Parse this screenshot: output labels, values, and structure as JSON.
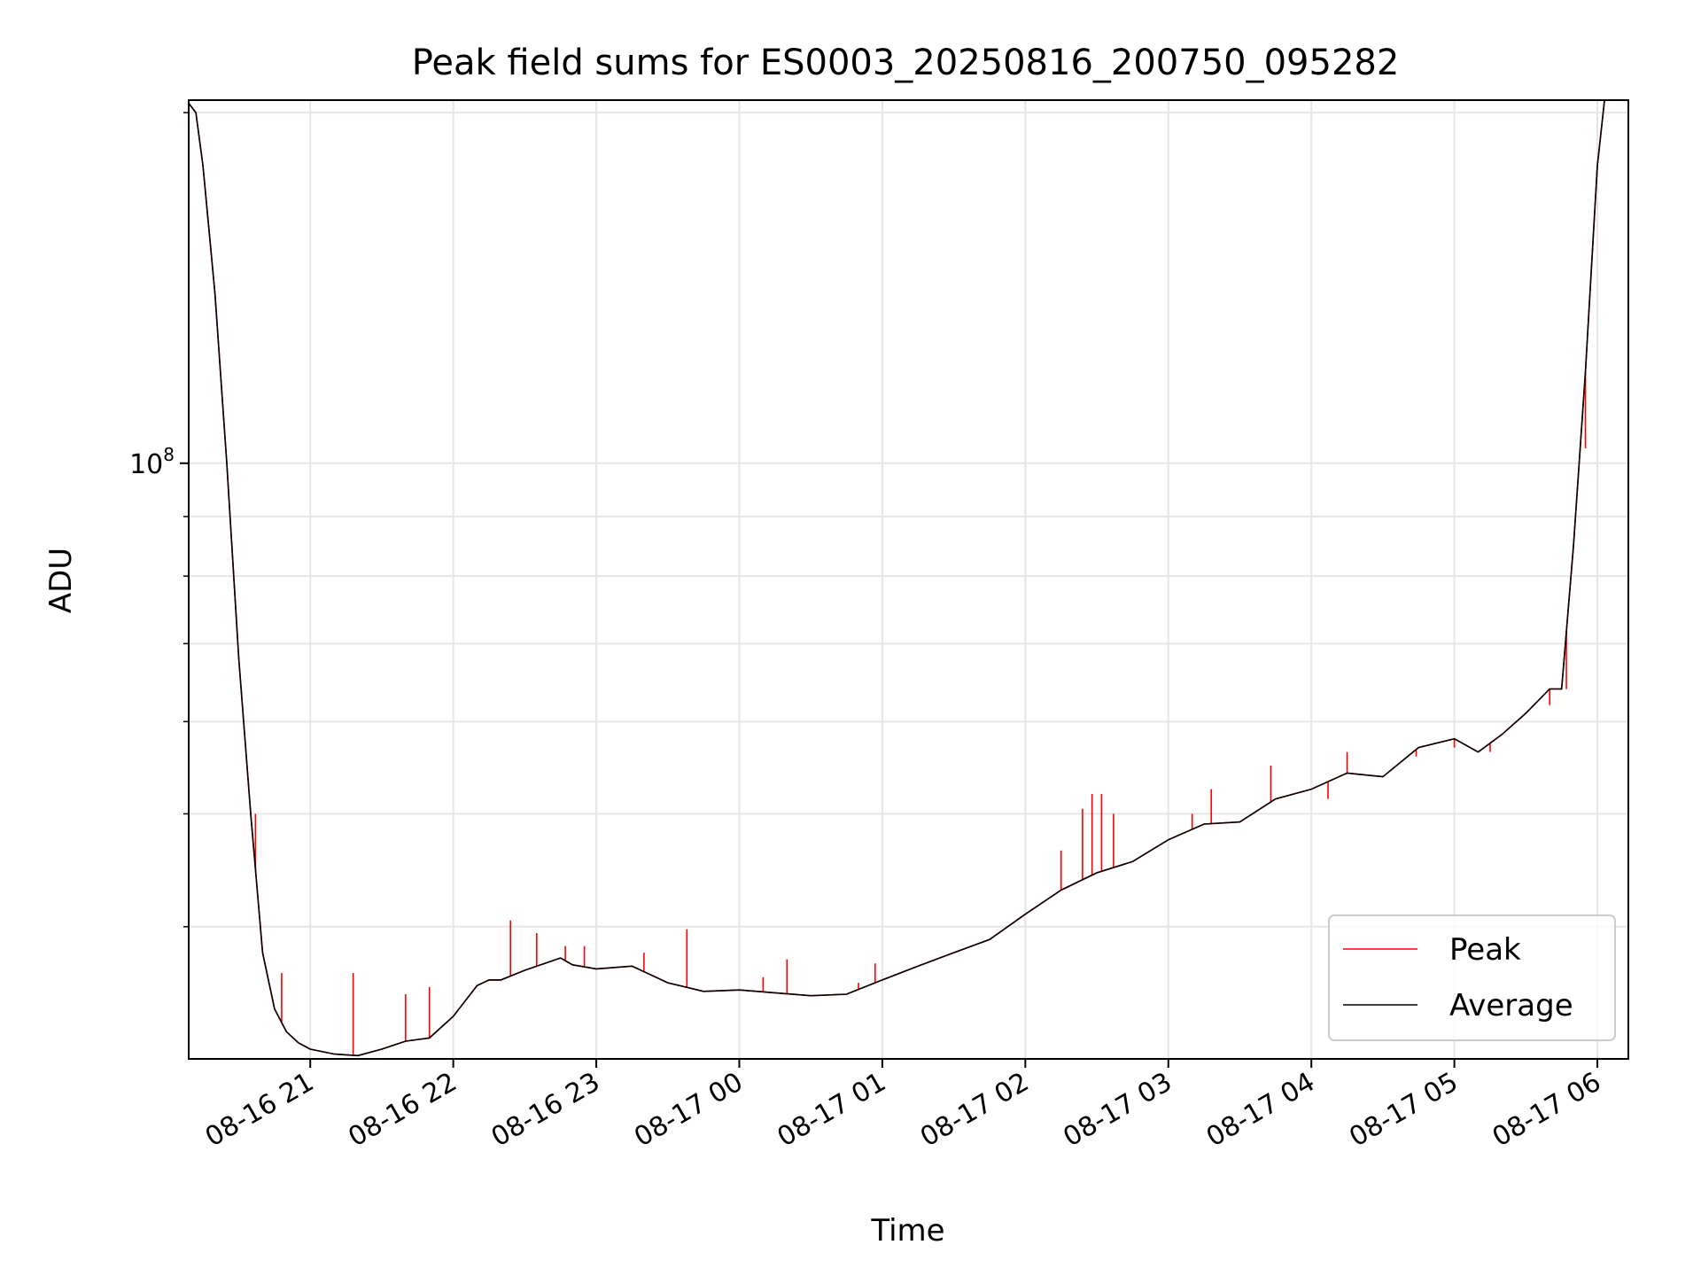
{
  "chart_data": {
    "type": "line",
    "title": "Peak field sums for ES0003_20250816_200750_095282",
    "xlabel": "Time",
    "ylabel": "ADU",
    "y_scale": "log",
    "y_tick_labels": [
      {
        "value": 100000000,
        "base": "10",
        "exp": "8"
      }
    ],
    "ylim": [
      30800000,
      205000000
    ],
    "x_tick_labels": [
      "08-16 21",
      "08-16 22",
      "08-16 23",
      "08-17 00",
      "08-17 01",
      "08-17 02",
      "08-17 03",
      "08-17 04",
      "08-17 05",
      "08-17 06"
    ],
    "x_ticks": [
      "2025-08-16 21:00",
      "2025-08-16 22:00",
      "2025-08-16 23:00",
      "2025-08-17 00:00",
      "2025-08-17 01:00",
      "2025-08-17 02:00",
      "2025-08-17 03:00",
      "2025-08-17 04:00",
      "2025-08-17 05:00",
      "2025-08-17 06:00"
    ],
    "xlim": [
      "2025-08-16 20:09",
      "2025-08-17 06:13"
    ],
    "grid": true,
    "legend_position": "lower-right",
    "series": [
      {
        "name": "Average",
        "color": "#000000",
        "x": [
          "2025-08-16 20:08",
          "2025-08-16 20:12",
          "2025-08-16 20:15",
          "2025-08-16 20:20",
          "2025-08-16 20:25",
          "2025-08-16 20:30",
          "2025-08-16 20:35",
          "2025-08-16 20:40",
          "2025-08-16 20:45",
          "2025-08-16 20:50",
          "2025-08-16 20:55",
          "2025-08-16 21:00",
          "2025-08-16 21:10",
          "2025-08-16 21:20",
          "2025-08-16 21:30",
          "2025-08-16 21:40",
          "2025-08-16 21:50",
          "2025-08-16 22:00",
          "2025-08-16 22:10",
          "2025-08-16 22:15",
          "2025-08-16 22:20",
          "2025-08-16 22:30",
          "2025-08-16 22:45",
          "2025-08-16 22:50",
          "2025-08-16 23:00",
          "2025-08-16 23:15",
          "2025-08-16 23:30",
          "2025-08-16 23:45",
          "2025-08-17 00:00",
          "2025-08-17 00:15",
          "2025-08-17 00:30",
          "2025-08-17 00:45",
          "2025-08-17 01:00",
          "2025-08-17 01:15",
          "2025-08-17 01:30",
          "2025-08-17 01:45",
          "2025-08-17 02:00",
          "2025-08-17 02:15",
          "2025-08-17 02:30",
          "2025-08-17 02:45",
          "2025-08-17 03:00",
          "2025-08-17 03:15",
          "2025-08-17 03:30",
          "2025-08-17 03:45",
          "2025-08-17 04:00",
          "2025-08-17 04:15",
          "2025-08-17 04:30",
          "2025-08-17 04:45",
          "2025-08-17 05:00",
          "2025-08-17 05:10",
          "2025-08-17 05:20",
          "2025-08-17 05:30",
          "2025-08-17 05:40",
          "2025-08-17 05:45",
          "2025-08-17 05:50",
          "2025-08-17 05:55",
          "2025-08-17 06:00",
          "2025-08-17 06:03",
          "2025-08-17 06:05"
        ],
        "values": [
          209000000,
          200000000,
          180000000,
          140000000,
          100000000,
          68000000,
          50000000,
          38000000,
          34000000,
          32500000,
          31800000,
          31400000,
          31100000,
          31000000,
          31400000,
          31900000,
          32100000,
          33500000,
          35600000,
          36000000,
          36000000,
          36700000,
          37600000,
          37100000,
          36800000,
          37000000,
          35800000,
          35200000,
          35300000,
          35100000,
          34900000,
          35000000,
          36000000,
          37000000,
          38000000,
          39000000,
          41000000,
          43000000,
          44500000,
          45500000,
          47500000,
          49000000,
          49200000,
          51500000,
          52500000,
          54200000,
          53800000,
          57000000,
          58000000,
          56500000,
          58500000,
          61000000,
          64000000,
          64000000,
          85000000,
          120000000,
          180000000,
          210000000,
          212000000
        ]
      },
      {
        "name": "Peak",
        "color": "#ff0000",
        "x": [
          "2025-08-16 20:08",
          "2025-08-16 20:12",
          "2025-08-16 20:15",
          "2025-08-16 20:20",
          "2025-08-16 20:25",
          "2025-08-16 20:30",
          "2025-08-16 20:35",
          "2025-08-16 20:40",
          "2025-08-16 20:45",
          "2025-08-16 20:50",
          "2025-08-16 20:55",
          "2025-08-16 21:00",
          "2025-08-16 21:10",
          "2025-08-16 21:20",
          "2025-08-16 21:30",
          "2025-08-16 21:40",
          "2025-08-16 21:50",
          "2025-08-16 22:00",
          "2025-08-16 22:10",
          "2025-08-16 22:15",
          "2025-08-16 22:20",
          "2025-08-16 22:30",
          "2025-08-16 22:45",
          "2025-08-16 22:50",
          "2025-08-16 23:00",
          "2025-08-16 23:15",
          "2025-08-16 23:30",
          "2025-08-16 23:45",
          "2025-08-17 00:00",
          "2025-08-17 00:15",
          "2025-08-17 00:30",
          "2025-08-17 00:45",
          "2025-08-17 01:00",
          "2025-08-17 01:15",
          "2025-08-17 01:30",
          "2025-08-17 01:45",
          "2025-08-17 02:00",
          "2025-08-17 02:15",
          "2025-08-17 02:30",
          "2025-08-17 02:45",
          "2025-08-17 03:00",
          "2025-08-17 03:15",
          "2025-08-17 03:30",
          "2025-08-17 03:45",
          "2025-08-17 04:00",
          "2025-08-17 04:15",
          "2025-08-17 04:30",
          "2025-08-17 04:45",
          "2025-08-17 05:00",
          "2025-08-17 05:10",
          "2025-08-17 05:20",
          "2025-08-17 05:30",
          "2025-08-17 05:40",
          "2025-08-17 05:45",
          "2025-08-17 05:50",
          "2025-08-17 05:55",
          "2025-08-17 06:00",
          "2025-08-17 06:03",
          "2025-08-17 06:05"
        ],
        "values": [
          209000000,
          200000000,
          180000000,
          140000000,
          100000000,
          68000000,
          50000000,
          38000000,
          34000000,
          32500000,
          31800000,
          31400000,
          31100000,
          31000000,
          31400000,
          31900000,
          32100000,
          33500000,
          35600000,
          36000000,
          36000000,
          36700000,
          37600000,
          37100000,
          36800000,
          37000000,
          35800000,
          35200000,
          35300000,
          35100000,
          34900000,
          35000000,
          36000000,
          37000000,
          38000000,
          39000000,
          41000000,
          43000000,
          44500000,
          45500000,
          47500000,
          49000000,
          49200000,
          51500000,
          52500000,
          54200000,
          53800000,
          57000000,
          58000000,
          56500000,
          58500000,
          61000000,
          64000000,
          64000000,
          85000000,
          120000000,
          180000000,
          210000000,
          212000000
        ],
        "spikes": [
          {
            "x": "2025-08-16 20:37",
            "value": 50000000
          },
          {
            "x": "2025-08-16 20:48",
            "value": 36500000
          },
          {
            "x": "2025-08-16 21:18",
            "value": 36500000
          },
          {
            "x": "2025-08-16 21:40",
            "value": 35000000
          },
          {
            "x": "2025-08-16 21:50",
            "value": 35500000
          },
          {
            "x": "2025-08-16 22:24",
            "value": 40500000
          },
          {
            "x": "2025-08-16 22:35",
            "value": 39500000
          },
          {
            "x": "2025-08-16 22:47",
            "value": 38500000
          },
          {
            "x": "2025-08-16 22:55",
            "value": 38500000
          },
          {
            "x": "2025-08-16 23:20",
            "value": 38000000
          },
          {
            "x": "2025-08-16 23:38",
            "value": 39800000
          },
          {
            "x": "2025-08-17 00:10",
            "value": 36200000
          },
          {
            "x": "2025-08-17 00:20",
            "value": 37500000
          },
          {
            "x": "2025-08-17 00:50",
            "value": 35800000
          },
          {
            "x": "2025-08-17 00:57",
            "value": 37200000
          },
          {
            "x": "2025-08-17 02:15",
            "value": 46500000
          },
          {
            "x": "2025-08-17 02:24",
            "value": 50500000
          },
          {
            "x": "2025-08-17 02:28",
            "value": 52000000
          },
          {
            "x": "2025-08-17 02:32",
            "value": 52000000
          },
          {
            "x": "2025-08-17 02:37",
            "value": 50000000
          },
          {
            "x": "2025-08-17 03:10",
            "value": 50000000
          },
          {
            "x": "2025-08-17 03:18",
            "value": 52500000
          },
          {
            "x": "2025-08-17 03:43",
            "value": 55000000
          },
          {
            "x": "2025-08-17 04:07",
            "value": 51500000
          },
          {
            "x": "2025-08-17 04:15",
            "value": 56500000
          },
          {
            "x": "2025-08-17 04:36",
            "value": 55000000
          },
          {
            "x": "2025-08-17 04:44",
            "value": 56000000
          },
          {
            "x": "2025-08-17 05:00",
            "value": 57000000
          },
          {
            "x": "2025-08-17 05:15",
            "value": 56500000
          },
          {
            "x": "2025-08-17 05:40",
            "value": 62000000
          },
          {
            "x": "2025-08-17 05:47",
            "value": 64000000
          },
          {
            "x": "2025-08-17 05:55",
            "value": 103000000
          }
        ]
      }
    ]
  }
}
